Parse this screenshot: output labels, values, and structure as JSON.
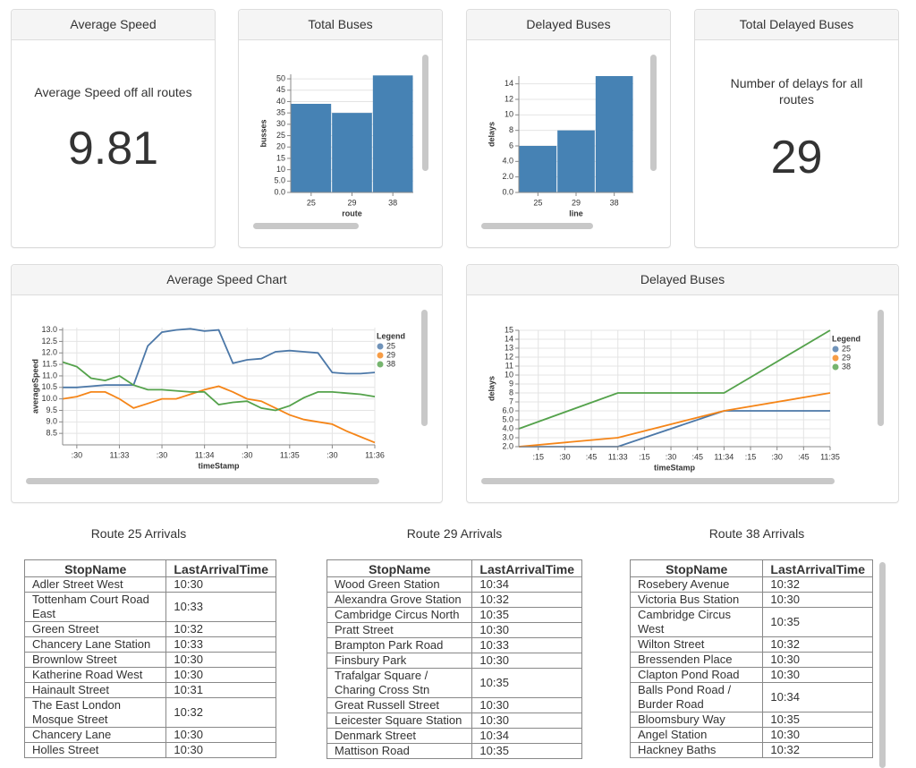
{
  "kpis": [
    {
      "title": "Average Speed",
      "label": "Average Speed off all routes",
      "value": 9.81
    },
    {
      "title": "Total Delayed Buses",
      "label": "Number of delays for all routes",
      "value": 29
    }
  ],
  "chart_data": [
    {
      "type": "bar",
      "title": "Total Buses",
      "x_label": "route",
      "y_label": "busses",
      "categories": [
        "25",
        "29",
        "38"
      ],
      "values": [
        39,
        35,
        51.5
      ],
      "color": "#4682b4",
      "ylim": [
        0,
        52
      ],
      "yticks": [
        {
          "value": 0,
          "label": "0.0"
        },
        {
          "value": 5,
          "label": "5.0"
        },
        10,
        15,
        20,
        25,
        30,
        35,
        40,
        45,
        50
      ],
      "grid": true
    },
    {
      "type": "bar",
      "title": "Delayed Buses",
      "x_label": "line",
      "y_label": "delays",
      "categories": [
        "25",
        "29",
        "38"
      ],
      "values": [
        6,
        8,
        15
      ],
      "color": "#4682b4",
      "ylim": [
        0,
        15
      ],
      "yticks": [
        {
          "value": 0,
          "label": "0.0"
        },
        {
          "value": 2,
          "label": "2.0"
        },
        {
          "value": 4,
          "label": "4.0"
        },
        6,
        8,
        10,
        12,
        14
      ],
      "grid": true
    },
    {
      "type": "line",
      "title": "Average Speed Chart",
      "x_label": "timeStamp",
      "y_label": "averageSpeed",
      "legend_title": "Legend",
      "legend": "right",
      "grid": true,
      "x": [
        "11:32:20",
        "11:32:30",
        "11:32:40",
        "11:32:50",
        "11:33:00",
        "11:33:10",
        "11:33:20",
        "11:33:30",
        "11:33:40",
        "11:33:50",
        "11:34:00",
        "11:34:10",
        "11:34:20",
        "11:34:30",
        "11:34:40",
        "11:34:50",
        "11:35:00",
        "11:35:10",
        "11:35:20",
        "11:35:30",
        "11:35:40",
        "11:35:50",
        "11:36:00"
      ],
      "series": [
        {
          "name": "25",
          "color": "#4c78a8",
          "values": [
            10.5,
            10.5,
            10.55,
            10.6,
            10.6,
            10.6,
            12.3,
            12.9,
            13.0,
            13.05,
            12.95,
            13.0,
            11.55,
            11.7,
            11.75,
            12.05,
            12.1,
            12.05,
            12.0,
            11.15,
            11.1,
            11.1,
            11.15
          ]
        },
        {
          "name": "29",
          "color": "#f58518",
          "values": [
            10.0,
            10.1,
            10.3,
            10.3,
            10.0,
            9.6,
            9.8,
            10.0,
            10.0,
            10.2,
            10.4,
            10.55,
            10.3,
            10.0,
            9.9,
            9.6,
            9.3,
            9.1,
            9.0,
            8.9,
            8.6,
            8.35,
            8.1
          ]
        },
        {
          "name": "38",
          "color": "#54a24b",
          "values": [
            11.6,
            11.4,
            10.9,
            10.8,
            11.0,
            10.6,
            10.4,
            10.4,
            10.35,
            10.3,
            10.3,
            9.75,
            9.85,
            9.9,
            9.6,
            9.5,
            9.7,
            10.05,
            10.3,
            10.3,
            10.25,
            10.2,
            10.1
          ]
        }
      ],
      "xlim": [
        "11:32:20",
        "11:36:00"
      ],
      "xticks": [
        {
          "value": "11:32:30",
          "label": ":30"
        },
        {
          "value": "11:33:00",
          "label": "11:33"
        },
        {
          "value": "11:33:30",
          "label": ":30"
        },
        {
          "value": "11:34:00",
          "label": "11:34"
        },
        {
          "value": "11:34:30",
          "label": ":30"
        },
        {
          "value": "11:35:00",
          "label": "11:35"
        },
        {
          "value": "11:35:30",
          "label": ":30"
        },
        {
          "value": "11:36:00",
          "label": "11:36"
        }
      ],
      "ylim": [
        8.0,
        13.1
      ],
      "yticks": [
        8.5,
        {
          "value": 9,
          "label": "9.0"
        },
        9.5,
        {
          "value": 10,
          "label": "10.0"
        },
        10.5,
        {
          "value": 11,
          "label": "11.0"
        },
        11.5,
        {
          "value": 12,
          "label": "12.0"
        },
        12.5,
        {
          "value": 13,
          "label": "13.0"
        }
      ]
    },
    {
      "type": "line",
      "title": "Delayed Buses",
      "x_label": "timeStamp",
      "y_label": "delays",
      "legend_title": "Legend",
      "legend": "right",
      "grid": true,
      "x": [
        "11:32:04",
        "11:33:00",
        "11:34:00",
        "11:35:00"
      ],
      "series": [
        {
          "name": "25",
          "color": "#4c78a8",
          "values": [
            2,
            2,
            6,
            6
          ]
        },
        {
          "name": "29",
          "color": "#f58518",
          "values": [
            2,
            3,
            6,
            8
          ]
        },
        {
          "name": "38",
          "color": "#54a24b",
          "values": [
            4,
            8,
            8,
            15
          ]
        }
      ],
      "xlim": [
        "11:32:04",
        "11:35:00"
      ],
      "xticks": [
        {
          "value": "11:32:15",
          "label": ":15"
        },
        {
          "value": "11:32:30",
          "label": ":30"
        },
        {
          "value": "11:32:45",
          "label": ":45"
        },
        {
          "value": "11:33:00",
          "label": "11:33"
        },
        {
          "value": "11:33:15",
          "label": ":15"
        },
        {
          "value": "11:33:30",
          "label": ":30"
        },
        {
          "value": "11:33:45",
          "label": ":45"
        },
        {
          "value": "11:34:00",
          "label": "11:34"
        },
        {
          "value": "11:34:15",
          "label": ":15"
        },
        {
          "value": "11:34:30",
          "label": ":30"
        },
        {
          "value": "11:34:45",
          "label": ":45"
        },
        {
          "value": "11:35:00",
          "label": "11:35"
        }
      ],
      "ylim": [
        2,
        15
      ],
      "yticks": [
        {
          "value": 2,
          "label": "2.0"
        },
        {
          "value": 3,
          "label": "3.0"
        },
        {
          "value": 4,
          "label": "4.0"
        },
        {
          "value": 5,
          "label": "5.0"
        },
        {
          "value": 6,
          "label": "6.0"
        },
        7,
        8,
        9,
        10,
        11,
        12,
        13,
        14,
        15
      ]
    }
  ],
  "tables": [
    {
      "title": "Route 25 Arrivals",
      "columns": [
        "StopName",
        "LastArrivalTime"
      ],
      "rows": [
        [
          "Adler Street West",
          "10:30"
        ],
        [
          "Tottenham Court Road East",
          "10:33"
        ],
        [
          "Green Street",
          "10:32"
        ],
        [
          "Chancery Lane Station",
          "10:33"
        ],
        [
          "Brownlow Street",
          "10:30"
        ],
        [
          "Katherine Road West",
          "10:30"
        ],
        [
          "Hainault Street",
          "10:31"
        ],
        [
          "The East London Mosque Street",
          "10:32"
        ],
        [
          "Chancery Lane",
          "10:30"
        ],
        [
          "Holles Street",
          "10:30"
        ]
      ]
    },
    {
      "title": "Route 29 Arrivals",
      "columns": [
        "StopName",
        "LastArrivalTime"
      ],
      "rows": [
        [
          "Wood Green Station",
          "10:34"
        ],
        [
          "Alexandra Grove Station",
          "10:32"
        ],
        [
          "Cambridge Circus North",
          "10:35"
        ],
        [
          "Pratt Street",
          "10:30"
        ],
        [
          "Brampton Park Road",
          "10:33"
        ],
        [
          "Finsbury Park",
          "10:30"
        ],
        [
          "Trafalgar Square / Charing Cross Stn",
          "10:35"
        ],
        [
          "Great Russell Street",
          "10:30"
        ],
        [
          "Leicester Square Station",
          "10:30"
        ],
        [
          "Denmark Street",
          "10:34"
        ],
        [
          "Mattison Road",
          "10:35"
        ]
      ]
    },
    {
      "title": "Route 38 Arrivals",
      "columns": [
        "StopName",
        "LastArrivalTime"
      ],
      "rows": [
        [
          "Rosebery Avenue",
          "10:32"
        ],
        [
          "Victoria Bus Station",
          "10:30"
        ],
        [
          "Cambridge Circus West",
          "10:35"
        ],
        [
          "Wilton Street",
          "10:32"
        ],
        [
          "Bressenden Place",
          "10:30"
        ],
        [
          "Clapton Pond Road",
          "10:30"
        ],
        [
          "Balls Pond Road / Burder Road",
          "10:34"
        ],
        [
          "Bloomsbury Way",
          "10:35"
        ],
        [
          "Angel Station",
          "10:30"
        ],
        [
          "Hackney Baths",
          "10:32"
        ]
      ]
    }
  ]
}
